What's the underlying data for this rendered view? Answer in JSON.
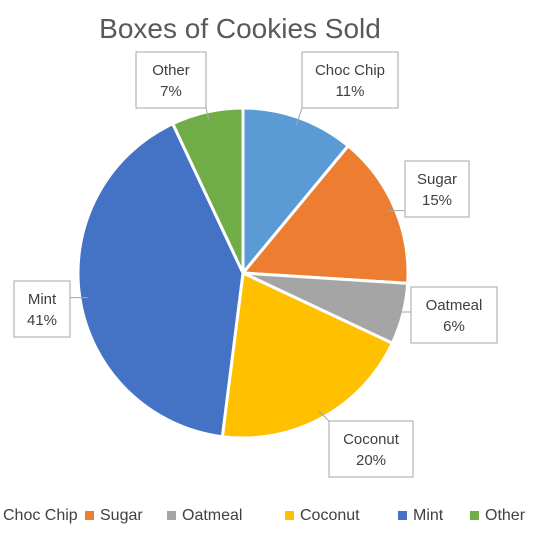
{
  "chart_data": {
    "type": "pie",
    "title": "Boxes of Cookies Sold",
    "unit": "%",
    "legend_position": "bottom",
    "slices": [
      {
        "label": "Choc Chip",
        "value": 11,
        "color": "#5b9bd5"
      },
      {
        "label": "Sugar",
        "value": 15,
        "color": "#ed7d31"
      },
      {
        "label": "Oatmeal",
        "value": 6,
        "color": "#a5a5a5"
      },
      {
        "label": "Coconut",
        "value": 20,
        "color": "#ffc000"
      },
      {
        "label": "Mint",
        "value": 41,
        "color": "#4472c4"
      },
      {
        "label": "Other",
        "value": 7,
        "color": "#70ad47"
      }
    ]
  }
}
